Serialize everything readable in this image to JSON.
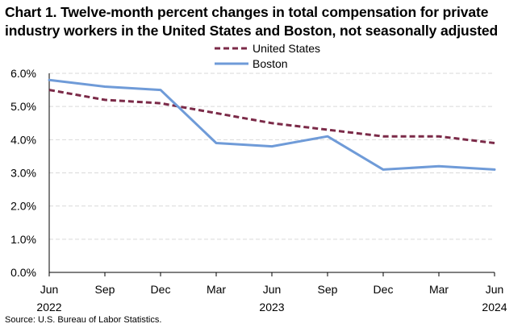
{
  "title_line1": "Chart 1. Twelve-month percent changes in total compensation for private",
  "title_line2": "industry workers in the United States and Boston, not seasonally adjusted",
  "source": "Source: U.S. Bureau of Labor Statistics.",
  "chart_data": {
    "type": "line",
    "title": "Chart 1. Twelve-month percent changes in total compensation for private industry workers in the United States and Boston, not seasonally adjusted",
    "categories": [
      "Jun",
      "Sep",
      "Dec",
      "Mar",
      "Jun",
      "Sep",
      "Dec",
      "Mar",
      "Jun"
    ],
    "year_labels": [
      "2022",
      "",
      "",
      "",
      "2023",
      "",
      "",
      "",
      "2024"
    ],
    "xlabel": "",
    "ylabel": "",
    "ylim": [
      0,
      6
    ],
    "yticks": [
      0,
      1,
      2,
      3,
      4,
      5,
      6
    ],
    "ytick_labels": [
      "0.0%",
      "1.0%",
      "2.0%",
      "3.0%",
      "4.0%",
      "5.0%",
      "6.0%"
    ],
    "grid": true,
    "legend_position": "top-center",
    "series": [
      {
        "name": "United States",
        "style": "dashed",
        "color": "#7b2a48",
        "values": [
          5.5,
          5.2,
          5.1,
          4.8,
          4.5,
          4.3,
          4.1,
          4.1,
          3.9
        ]
      },
      {
        "name": "Boston",
        "style": "solid",
        "color": "#6f9bd8",
        "values": [
          5.8,
          5.6,
          5.5,
          3.9,
          3.8,
          4.1,
          3.1,
          3.2,
          3.1
        ]
      }
    ]
  }
}
